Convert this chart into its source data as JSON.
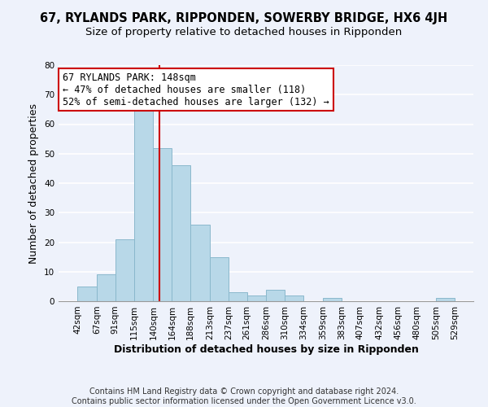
{
  "title": "67, RYLANDS PARK, RIPPONDEN, SOWERBY BRIDGE, HX6 4JH",
  "subtitle": "Size of property relative to detached houses in Ripponden",
  "xlabel": "Distribution of detached houses by size in Ripponden",
  "ylabel": "Number of detached properties",
  "bar_color": "#b8d8e8",
  "bar_edge_color": "#8ab8cc",
  "annotation_line_color": "#cc0000",
  "annotation_value": 148,
  "annotation_text_line1": "67 RYLANDS PARK: 148sqm",
  "annotation_text_line2": "← 47% of detached houses are smaller (118)",
  "annotation_text_line3": "52% of semi-detached houses are larger (132) →",
  "bins": [
    42,
    67,
    91,
    115,
    140,
    164,
    188,
    213,
    237,
    261,
    286,
    310,
    334,
    359,
    383,
    407,
    432,
    456,
    480,
    505,
    529
  ],
  "counts": [
    5,
    9,
    21,
    67,
    52,
    46,
    26,
    15,
    3,
    2,
    4,
    2,
    0,
    1,
    0,
    0,
    0,
    0,
    0,
    1
  ],
  "ylim": [
    0,
    80
  ],
  "yticks": [
    0,
    10,
    20,
    30,
    40,
    50,
    60,
    70,
    80
  ],
  "footer_line1": "Contains HM Land Registry data © Crown copyright and database right 2024.",
  "footer_line2": "Contains public sector information licensed under the Open Government Licence v3.0.",
  "background_color": "#eef2fb",
  "grid_color": "#ffffff",
  "title_fontsize": 10.5,
  "subtitle_fontsize": 9.5,
  "axis_label_fontsize": 9,
  "tick_fontsize": 7.5,
  "footer_fontsize": 7,
  "annotation_fontsize": 8.5
}
